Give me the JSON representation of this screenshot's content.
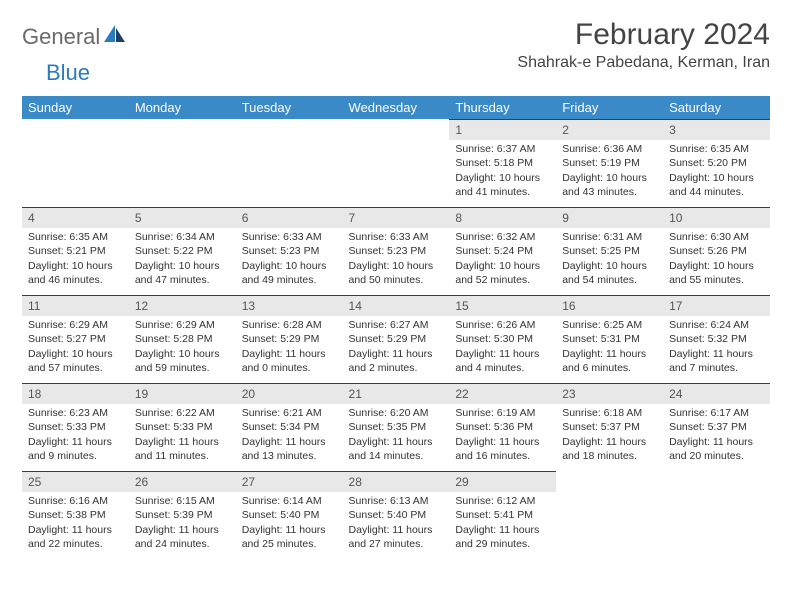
{
  "brand": {
    "part1": "General",
    "part2": "Blue"
  },
  "title": "February 2024",
  "location": "Shahrak-e Pabedana, Kerman, Iran",
  "colors": {
    "header_bg": "#3a8ac8",
    "header_text": "#ffffff",
    "daynum_bg": "#e8e8e8",
    "dayline": "#20426b",
    "brand_gray": "#6a6a6a",
    "brand_blue": "#2a7bbf"
  },
  "daysOfWeek": [
    "Sunday",
    "Monday",
    "Tuesday",
    "Wednesday",
    "Thursday",
    "Friday",
    "Saturday"
  ],
  "weeks": [
    [
      {
        "n": "",
        "sr": "",
        "ss": "",
        "dl": ""
      },
      {
        "n": "",
        "sr": "",
        "ss": "",
        "dl": ""
      },
      {
        "n": "",
        "sr": "",
        "ss": "",
        "dl": ""
      },
      {
        "n": "",
        "sr": "",
        "ss": "",
        "dl": ""
      },
      {
        "n": "1",
        "sr": "Sunrise: 6:37 AM",
        "ss": "Sunset: 5:18 PM",
        "dl": "Daylight: 10 hours and 41 minutes."
      },
      {
        "n": "2",
        "sr": "Sunrise: 6:36 AM",
        "ss": "Sunset: 5:19 PM",
        "dl": "Daylight: 10 hours and 43 minutes."
      },
      {
        "n": "3",
        "sr": "Sunrise: 6:35 AM",
        "ss": "Sunset: 5:20 PM",
        "dl": "Daylight: 10 hours and 44 minutes."
      }
    ],
    [
      {
        "n": "4",
        "sr": "Sunrise: 6:35 AM",
        "ss": "Sunset: 5:21 PM",
        "dl": "Daylight: 10 hours and 46 minutes."
      },
      {
        "n": "5",
        "sr": "Sunrise: 6:34 AM",
        "ss": "Sunset: 5:22 PM",
        "dl": "Daylight: 10 hours and 47 minutes."
      },
      {
        "n": "6",
        "sr": "Sunrise: 6:33 AM",
        "ss": "Sunset: 5:23 PM",
        "dl": "Daylight: 10 hours and 49 minutes."
      },
      {
        "n": "7",
        "sr": "Sunrise: 6:33 AM",
        "ss": "Sunset: 5:23 PM",
        "dl": "Daylight: 10 hours and 50 minutes."
      },
      {
        "n": "8",
        "sr": "Sunrise: 6:32 AM",
        "ss": "Sunset: 5:24 PM",
        "dl": "Daylight: 10 hours and 52 minutes."
      },
      {
        "n": "9",
        "sr": "Sunrise: 6:31 AM",
        "ss": "Sunset: 5:25 PM",
        "dl": "Daylight: 10 hours and 54 minutes."
      },
      {
        "n": "10",
        "sr": "Sunrise: 6:30 AM",
        "ss": "Sunset: 5:26 PM",
        "dl": "Daylight: 10 hours and 55 minutes."
      }
    ],
    [
      {
        "n": "11",
        "sr": "Sunrise: 6:29 AM",
        "ss": "Sunset: 5:27 PM",
        "dl": "Daylight: 10 hours and 57 minutes."
      },
      {
        "n": "12",
        "sr": "Sunrise: 6:29 AM",
        "ss": "Sunset: 5:28 PM",
        "dl": "Daylight: 10 hours and 59 minutes."
      },
      {
        "n": "13",
        "sr": "Sunrise: 6:28 AM",
        "ss": "Sunset: 5:29 PM",
        "dl": "Daylight: 11 hours and 0 minutes."
      },
      {
        "n": "14",
        "sr": "Sunrise: 6:27 AM",
        "ss": "Sunset: 5:29 PM",
        "dl": "Daylight: 11 hours and 2 minutes."
      },
      {
        "n": "15",
        "sr": "Sunrise: 6:26 AM",
        "ss": "Sunset: 5:30 PM",
        "dl": "Daylight: 11 hours and 4 minutes."
      },
      {
        "n": "16",
        "sr": "Sunrise: 6:25 AM",
        "ss": "Sunset: 5:31 PM",
        "dl": "Daylight: 11 hours and 6 minutes."
      },
      {
        "n": "17",
        "sr": "Sunrise: 6:24 AM",
        "ss": "Sunset: 5:32 PM",
        "dl": "Daylight: 11 hours and 7 minutes."
      }
    ],
    [
      {
        "n": "18",
        "sr": "Sunrise: 6:23 AM",
        "ss": "Sunset: 5:33 PM",
        "dl": "Daylight: 11 hours and 9 minutes."
      },
      {
        "n": "19",
        "sr": "Sunrise: 6:22 AM",
        "ss": "Sunset: 5:33 PM",
        "dl": "Daylight: 11 hours and 11 minutes."
      },
      {
        "n": "20",
        "sr": "Sunrise: 6:21 AM",
        "ss": "Sunset: 5:34 PM",
        "dl": "Daylight: 11 hours and 13 minutes."
      },
      {
        "n": "21",
        "sr": "Sunrise: 6:20 AM",
        "ss": "Sunset: 5:35 PM",
        "dl": "Daylight: 11 hours and 14 minutes."
      },
      {
        "n": "22",
        "sr": "Sunrise: 6:19 AM",
        "ss": "Sunset: 5:36 PM",
        "dl": "Daylight: 11 hours and 16 minutes."
      },
      {
        "n": "23",
        "sr": "Sunrise: 6:18 AM",
        "ss": "Sunset: 5:37 PM",
        "dl": "Daylight: 11 hours and 18 minutes."
      },
      {
        "n": "24",
        "sr": "Sunrise: 6:17 AM",
        "ss": "Sunset: 5:37 PM",
        "dl": "Daylight: 11 hours and 20 minutes."
      }
    ],
    [
      {
        "n": "25",
        "sr": "Sunrise: 6:16 AM",
        "ss": "Sunset: 5:38 PM",
        "dl": "Daylight: 11 hours and 22 minutes."
      },
      {
        "n": "26",
        "sr": "Sunrise: 6:15 AM",
        "ss": "Sunset: 5:39 PM",
        "dl": "Daylight: 11 hours and 24 minutes."
      },
      {
        "n": "27",
        "sr": "Sunrise: 6:14 AM",
        "ss": "Sunset: 5:40 PM",
        "dl": "Daylight: 11 hours and 25 minutes."
      },
      {
        "n": "28",
        "sr": "Sunrise: 6:13 AM",
        "ss": "Sunset: 5:40 PM",
        "dl": "Daylight: 11 hours and 27 minutes."
      },
      {
        "n": "29",
        "sr": "Sunrise: 6:12 AM",
        "ss": "Sunset: 5:41 PM",
        "dl": "Daylight: 11 hours and 29 minutes."
      },
      {
        "n": "",
        "sr": "",
        "ss": "",
        "dl": ""
      },
      {
        "n": "",
        "sr": "",
        "ss": "",
        "dl": ""
      }
    ]
  ]
}
